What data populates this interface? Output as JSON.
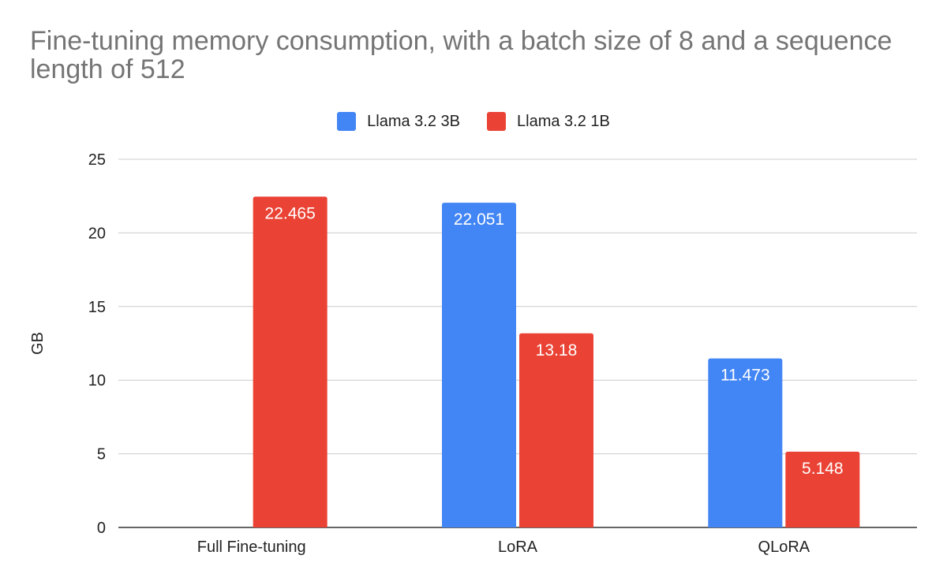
{
  "chart_data": {
    "type": "bar",
    "title": "Fine-tuning memory consumption, with a batch size of 8 and a sequence length of 512",
    "xlabel": "",
    "ylabel": "GB",
    "categories": [
      "Full Fine-tuning",
      "LoRA",
      "QLoRA"
    ],
    "series": [
      {
        "name": "Llama 3.2 3B",
        "color": "#4285f4",
        "values": [
          null,
          22.051,
          11.473
        ],
        "labels": [
          "",
          "22.051",
          "11.473"
        ]
      },
      {
        "name": "Llama 3.2 1B",
        "color": "#ea4335",
        "values": [
          22.465,
          13.18,
          5.148
        ],
        "labels": [
          "22.465",
          "13.18",
          "5.148"
        ]
      }
    ],
    "ylim": [
      0,
      25
    ],
    "yticks": [
      0,
      5,
      10,
      15,
      20,
      25
    ],
    "grid": true,
    "legend_position": "top-center"
  }
}
